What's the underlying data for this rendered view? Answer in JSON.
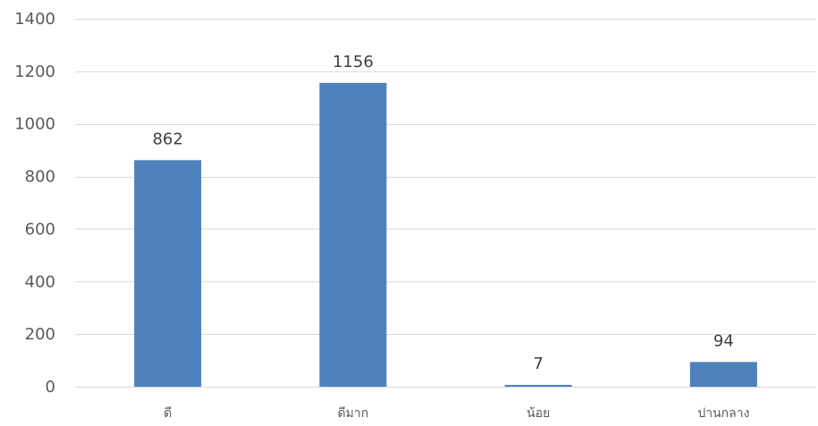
{
  "chart_data": {
    "type": "bar",
    "title": "",
    "xlabel": "",
    "ylabel": "",
    "categories": [
      "ดี",
      "ดีมาก",
      "น้อย",
      "ปานกลาง"
    ],
    "values": [
      862,
      1156,
      7,
      94
    ],
    "data_labels": [
      "862",
      "1156",
      "7",
      "94"
    ],
    "ylim": [
      0,
      1400
    ],
    "yticks": [
      0,
      200,
      400,
      600,
      800,
      1000,
      1200,
      1400
    ],
    "grid": true,
    "legend": "none",
    "bar_color": "#4f81bd"
  }
}
